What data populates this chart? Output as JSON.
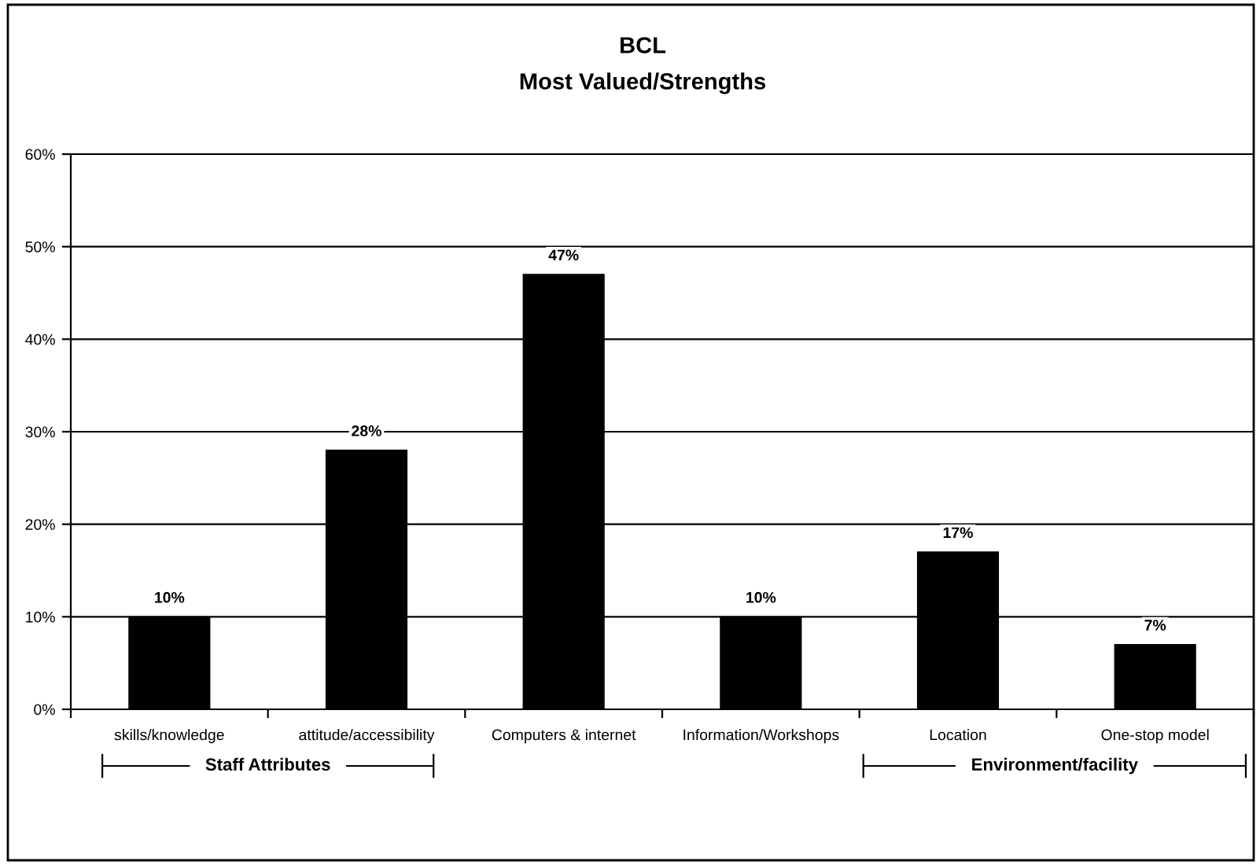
{
  "chart_data": {
    "type": "bar",
    "title": "BCL",
    "subtitle": "Most Valued/Strengths",
    "categories": [
      "skills/knowledge",
      "attitude/accessibility",
      "Computers & internet",
      "Information/Workshops",
      "Location",
      "One-stop model"
    ],
    "values": [
      10,
      28,
      47,
      10,
      17,
      7
    ],
    "value_labels": [
      "10%",
      "28%",
      "47%",
      "10%",
      "17%",
      "7%"
    ],
    "color": "#000000",
    "ylim": [
      0,
      60
    ],
    "yticks": [
      {
        "value": 0,
        "label": "0%"
      },
      {
        "value": 10,
        "label": "10%"
      },
      {
        "value": 20,
        "label": "20%"
      },
      {
        "value": 30,
        "label": "30%"
      },
      {
        "value": 40,
        "label": "40%"
      },
      {
        "value": 50,
        "label": "50%"
      },
      {
        "value": 60,
        "label": "60%"
      }
    ],
    "grid": "y",
    "annotations": [
      "Staff Attributes",
      "Environment/facility"
    ]
  }
}
